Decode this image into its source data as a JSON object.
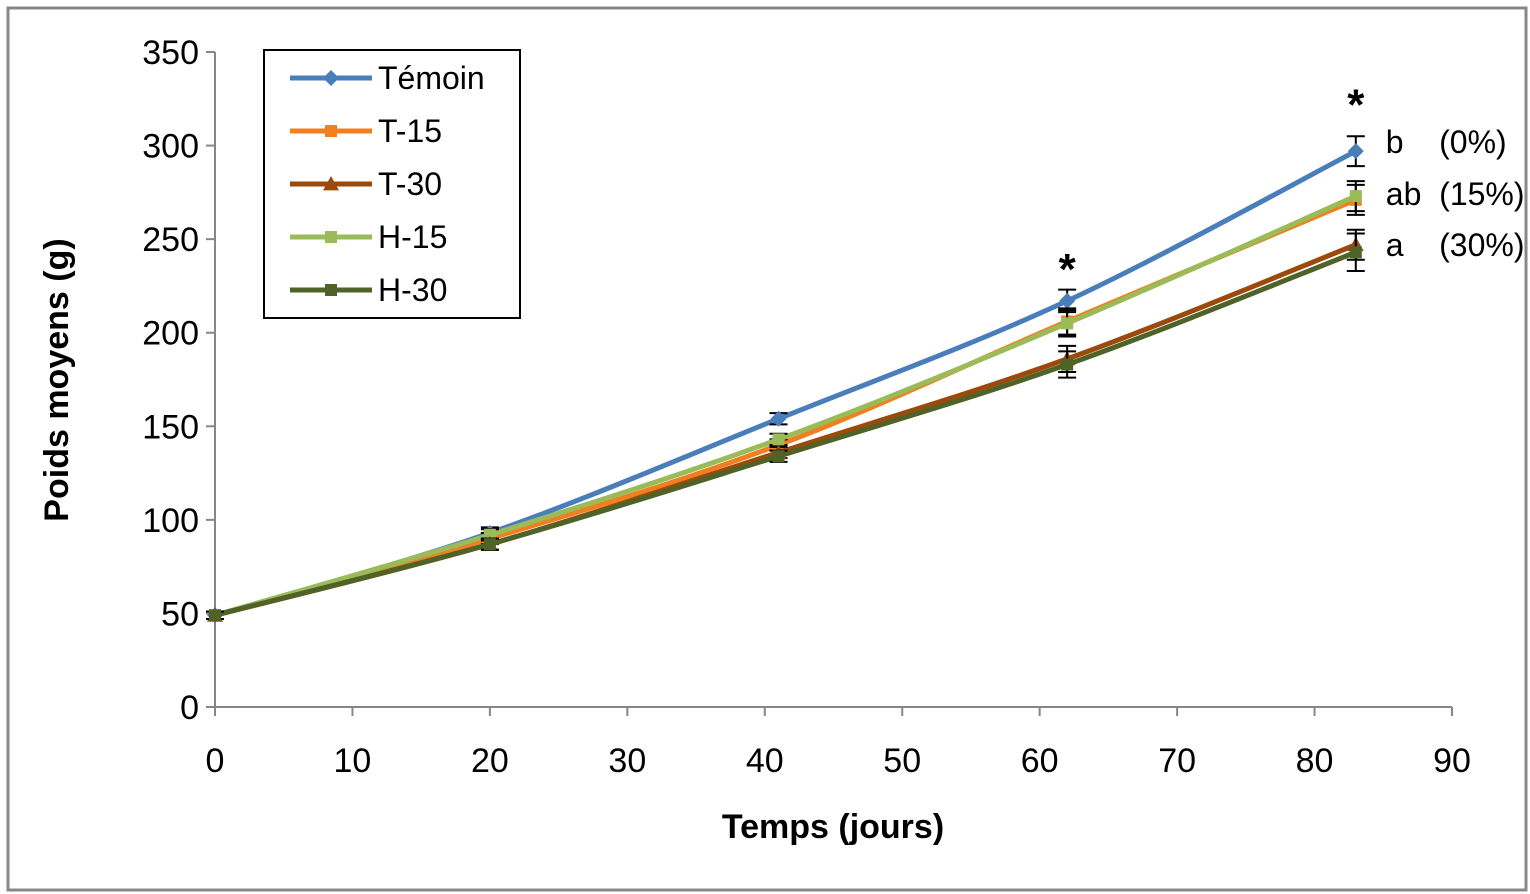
{
  "chart_data": {
    "type": "line",
    "xlabel": "Temps (jours)",
    "ylabel": "Poids moyens (g)",
    "xlim": [
      0,
      90
    ],
    "ylim": [
      0,
      350
    ],
    "xticks": [
      0,
      10,
      20,
      30,
      40,
      50,
      60,
      70,
      80,
      90
    ],
    "yticks": [
      0,
      50,
      100,
      150,
      200,
      250,
      300,
      350
    ],
    "grid": false,
    "legend_placement": "top-left",
    "x": [
      0,
      20,
      41,
      62,
      83
    ],
    "series": [
      {
        "name": "Témoin",
        "color": "#4a7ebb",
        "marker": "diamond",
        "values": [
          49,
          93,
          154,
          217,
          297
        ],
        "errors": [
          2,
          3,
          3,
          6,
          8
        ]
      },
      {
        "name": "T-15",
        "color": "#f07f1f",
        "marker": "square",
        "values": [
          49,
          90,
          140,
          206,
          271
        ],
        "errors": [
          2,
          3,
          3,
          7,
          8
        ]
      },
      {
        "name": "T-30",
        "color": "#9c4a0c",
        "marker": "triangle",
        "values": [
          49,
          87,
          136,
          186,
          247
        ],
        "errors": [
          2,
          3,
          3,
          7,
          8
        ]
      },
      {
        "name": "H-15",
        "color": "#9bbb59",
        "marker": "square",
        "values": [
          49,
          92,
          143,
          205,
          273
        ],
        "errors": [
          2,
          3,
          3,
          7,
          8
        ]
      },
      {
        "name": "H-30",
        "color": "#4f6228",
        "marker": "square",
        "values": [
          49,
          87,
          134,
          183,
          243
        ],
        "errors": [
          2,
          3,
          3,
          7,
          10
        ]
      }
    ],
    "annotations": [
      {
        "text": "*",
        "x": 62,
        "y": 242
      },
      {
        "text": "*",
        "x": 83,
        "y": 330
      },
      {
        "text": "b    (0%)",
        "x": 83,
        "y": 302
      },
      {
        "text": "ab  (15%)",
        "x": 83,
        "y": 274
      },
      {
        "text": "a    (30%)",
        "x": 83,
        "y": 247
      }
    ]
  }
}
